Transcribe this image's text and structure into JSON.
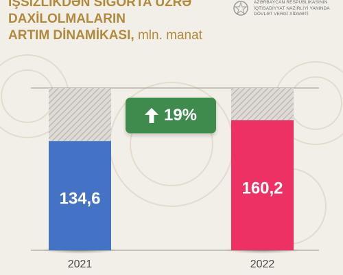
{
  "header": {
    "title_line1": "İŞSİZLİKDƏN SIĞORTA ÜZRƏ",
    "title_line2": "DAXİLOLMALARIN",
    "title_line3": "ARTIM DİNAMİKASI,",
    "title_unit": "mln. manat"
  },
  "organization": {
    "name": "AZƏRBAYCAN RESPUBLİKASININ\nİQTİSADİYYAT NAZİRLİYİ YANINDA\nDÖVLƏT VERGİ XİDMƏTİ",
    "emblem_icon": "state-emblem-icon"
  },
  "growth": {
    "label": "19%",
    "icon": "arrow-up-icon",
    "color": "#3f8a4d"
  },
  "chart_data": {
    "type": "bar",
    "categories": [
      "2021",
      "2022"
    ],
    "values": [
      134.6,
      160.2
    ],
    "value_labels": [
      "134,6",
      "160,2"
    ],
    "colors": [
      "#4472c4",
      "#ee3164"
    ],
    "title": "İŞSİZLİKDƏN SIĞORTA ÜZRƏ DAXİLOLMALARIN ARTIM DİNAMİKASI, mln. manat",
    "xlabel": "",
    "ylabel": "",
    "grid": false
  }
}
